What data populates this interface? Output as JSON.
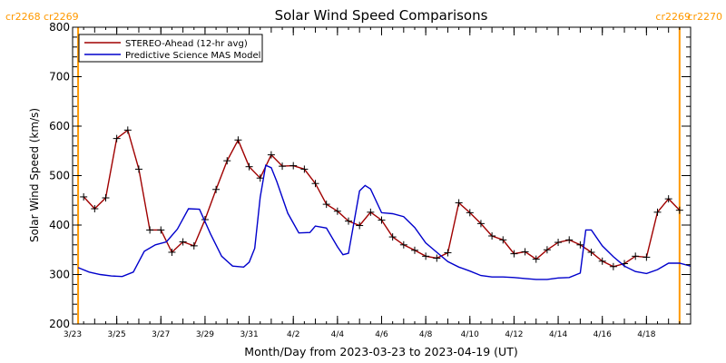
{
  "chart_data": {
    "type": "line",
    "title": "Solar Wind Speed Comparisons",
    "xlabel": "Month/Day from 2023-03-23 to 2023-04-19 (UT)",
    "ylabel": "Solar Wind Speed (km/s)",
    "ylim": [
      200,
      800
    ],
    "y_ticks": [
      "200",
      "300",
      "400",
      "500",
      "600",
      "700",
      "800"
    ],
    "xlim": [
      "2023-03-23",
      "2023-04-19"
    ],
    "x_ticks": [
      {
        "date": "2023-03-23",
        "label": "3/23"
      },
      {
        "date": "2023-03-25",
        "label": "3/25"
      },
      {
        "date": "2023-03-27",
        "label": "3/27"
      },
      {
        "date": "2023-03-29",
        "label": "3/29"
      },
      {
        "date": "2023-03-31",
        "label": "3/31"
      },
      {
        "date": "2023-04-02",
        "label": "4/2"
      },
      {
        "date": "2023-04-04",
        "label": "4/4"
      },
      {
        "date": "2023-04-06",
        "label": "4/6"
      },
      {
        "date": "2023-04-08",
        "label": "4/8"
      },
      {
        "date": "2023-04-10",
        "label": "4/10"
      },
      {
        "date": "2023-04-12",
        "label": "4/12"
      },
      {
        "date": "2023-04-14",
        "label": "4/14"
      },
      {
        "date": "2023-04-16",
        "label": "4/16"
      },
      {
        "date": "2023-04-18",
        "label": "4/18"
      }
    ],
    "carrington_left": {
      "date": "2023-03-23 06:00",
      "label_a": "cr2268",
      "label_b": "cr2269"
    },
    "carrington_right": {
      "date": "2023-04-19 12:00",
      "label_a": "cr2269",
      "label_b": "cr2270"
    },
    "legend_position": "top-left",
    "series": [
      {
        "name": "STEREO-Ahead (12-hr avg)",
        "color": "#a00000",
        "marker": "plus",
        "points": [
          [
            "2023-03-23 12:00",
            457
          ],
          [
            "2023-03-24 00:00",
            433
          ],
          [
            "2023-03-24 12:00",
            455
          ],
          [
            "2023-03-25 00:00",
            575
          ],
          [
            "2023-03-25 12:00",
            592
          ],
          [
            "2023-03-26 00:00",
            513
          ],
          [
            "2023-03-26 12:00",
            390
          ],
          [
            "2023-03-27 00:00",
            390
          ],
          [
            "2023-03-27 12:00",
            345
          ],
          [
            "2023-03-28 00:00",
            366
          ],
          [
            "2023-03-28 12:00",
            358
          ],
          [
            "2023-03-29 00:00",
            411
          ],
          [
            "2023-03-29 12:00",
            472
          ],
          [
            "2023-03-30 00:00",
            530
          ],
          [
            "2023-03-30 12:00",
            572
          ],
          [
            "2023-03-31 00:00",
            518
          ],
          [
            "2023-03-31 12:00",
            495
          ],
          [
            "2023-04-01 00:00",
            542
          ],
          [
            "2023-04-01 12:00",
            519
          ],
          [
            "2023-04-02 00:00",
            520
          ],
          [
            "2023-04-02 12:00",
            513
          ],
          [
            "2023-04-03 00:00",
            484
          ],
          [
            "2023-04-03 12:00",
            442
          ],
          [
            "2023-04-04 00:00",
            428
          ],
          [
            "2023-04-04 12:00",
            408
          ],
          [
            "2023-04-05 00:00",
            399
          ],
          [
            "2023-04-05 12:00",
            426
          ],
          [
            "2023-04-06 00:00",
            410
          ],
          [
            "2023-04-06 12:00",
            376
          ],
          [
            "2023-04-07 00:00",
            360
          ],
          [
            "2023-04-07 12:00",
            349
          ],
          [
            "2023-04-08 00:00",
            337
          ],
          [
            "2023-04-08 12:00",
            333
          ],
          [
            "2023-04-09 00:00",
            344
          ],
          [
            "2023-04-09 12:00",
            445
          ],
          [
            "2023-04-10 00:00",
            425
          ],
          [
            "2023-04-10 12:00",
            403
          ],
          [
            "2023-04-11 00:00",
            378
          ],
          [
            "2023-04-11 12:00",
            370
          ],
          [
            "2023-04-12 00:00",
            342
          ],
          [
            "2023-04-12 12:00",
            346
          ],
          [
            "2023-04-13 00:00",
            331
          ],
          [
            "2023-04-13 12:00",
            350
          ],
          [
            "2023-04-14 00:00",
            365
          ],
          [
            "2023-04-14 12:00",
            370
          ],
          [
            "2023-04-15 00:00",
            360
          ],
          [
            "2023-04-15 12:00",
            345
          ],
          [
            "2023-04-16 00:00",
            327
          ],
          [
            "2023-04-16 12:00",
            316
          ],
          [
            "2023-04-17 00:00",
            322
          ],
          [
            "2023-04-17 12:00",
            337
          ],
          [
            "2023-04-18 00:00",
            335
          ],
          [
            "2023-04-18 12:00",
            426
          ],
          [
            "2023-04-19 00:00",
            453
          ],
          [
            "2023-04-19 12:00",
            430
          ]
        ]
      },
      {
        "name": "Predictive Science MAS Model",
        "color": "#0000cc",
        "marker": "none",
        "points": [
          [
            "2023-03-23 06:00",
            314
          ],
          [
            "2023-03-23 18:00",
            305
          ],
          [
            "2023-03-24 06:00",
            300
          ],
          [
            "2023-03-24 18:00",
            297
          ],
          [
            "2023-03-25 06:00",
            296
          ],
          [
            "2023-03-25 18:00",
            305
          ],
          [
            "2023-03-26 06:00",
            347
          ],
          [
            "2023-03-26 18:00",
            360
          ],
          [
            "2023-03-27 06:00",
            366
          ],
          [
            "2023-03-27 18:00",
            392
          ],
          [
            "2023-03-28 06:00",
            433
          ],
          [
            "2023-03-28 18:00",
            432
          ],
          [
            "2023-03-29 06:00",
            382
          ],
          [
            "2023-03-29 18:00",
            337
          ],
          [
            "2023-03-30 06:00",
            317
          ],
          [
            "2023-03-30 18:00",
            315
          ],
          [
            "2023-03-31 00:00",
            325
          ],
          [
            "2023-03-31 06:00",
            353
          ],
          [
            "2023-03-31 12:00",
            456
          ],
          [
            "2023-03-31 18:00",
            521
          ],
          [
            "2023-04-01 00:00",
            516
          ],
          [
            "2023-04-01 06:00",
            488
          ],
          [
            "2023-04-01 18:00",
            424
          ],
          [
            "2023-04-02 06:00",
            384
          ],
          [
            "2023-04-02 18:00",
            385
          ],
          [
            "2023-04-03 00:00",
            398
          ],
          [
            "2023-04-03 12:00",
            394
          ],
          [
            "2023-04-04 00:00",
            356
          ],
          [
            "2023-04-04 06:00",
            340
          ],
          [
            "2023-04-04 12:00",
            343
          ],
          [
            "2023-04-05 00:00",
            469
          ],
          [
            "2023-04-05 06:00",
            480
          ],
          [
            "2023-04-05 12:00",
            473
          ],
          [
            "2023-04-06 00:00",
            425
          ],
          [
            "2023-04-06 12:00",
            423
          ],
          [
            "2023-04-07 00:00",
            417
          ],
          [
            "2023-04-07 12:00",
            395
          ],
          [
            "2023-04-08 00:00",
            364
          ],
          [
            "2023-04-08 12:00",
            345
          ],
          [
            "2023-04-09 00:00",
            326
          ],
          [
            "2023-04-09 12:00",
            315
          ],
          [
            "2023-04-10 00:00",
            307
          ],
          [
            "2023-04-10 12:00",
            298
          ],
          [
            "2023-04-11 00:00",
            295
          ],
          [
            "2023-04-11 12:00",
            295
          ],
          [
            "2023-04-12 00:00",
            294
          ],
          [
            "2023-04-12 12:00",
            292
          ],
          [
            "2023-04-13 00:00",
            290
          ],
          [
            "2023-04-13 12:00",
            290
          ],
          [
            "2023-04-14 00:00",
            293
          ],
          [
            "2023-04-14 12:00",
            294
          ],
          [
            "2023-04-15 00:00",
            303
          ],
          [
            "2023-04-15 06:00",
            390
          ],
          [
            "2023-04-15 12:00",
            390
          ],
          [
            "2023-04-16 00:00",
            358
          ],
          [
            "2023-04-16 12:00",
            336
          ],
          [
            "2023-04-17 00:00",
            317
          ],
          [
            "2023-04-17 12:00",
            306
          ],
          [
            "2023-04-18 00:00",
            302
          ],
          [
            "2023-04-18 12:00",
            310
          ],
          [
            "2023-04-19 00:00",
            323
          ],
          [
            "2023-04-19 12:00",
            323
          ],
          [
            "2023-04-20 00:00",
            317
          ],
          [
            "2023-04-20 12:00",
            310
          ]
        ]
      }
    ]
  }
}
